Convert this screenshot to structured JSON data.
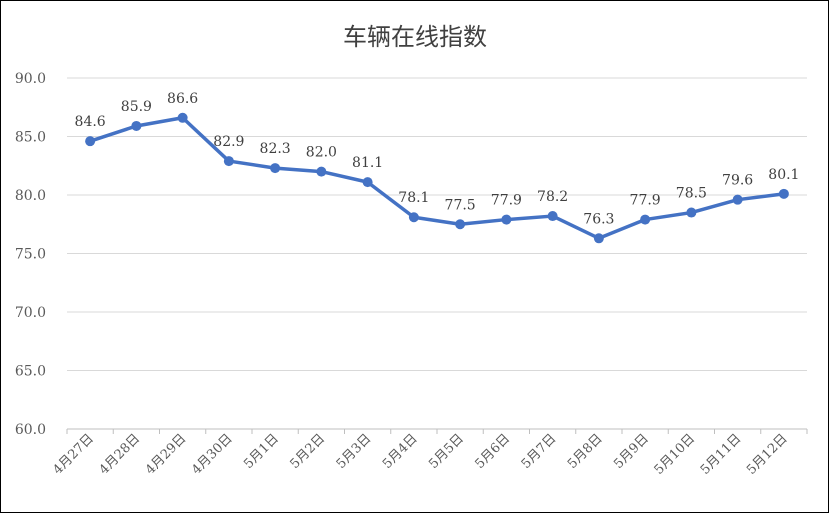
{
  "chart_data": {
    "type": "line",
    "title": "车辆在线指数",
    "xlabel": "",
    "ylabel": "",
    "categories": [
      "4月27日",
      "4月28日",
      "4月29日",
      "4月30日",
      "5月1日",
      "5月2日",
      "5月3日",
      "5月4日",
      "5月5日",
      "5月6日",
      "5月7日",
      "5月8日",
      "5月9日",
      "5月10日",
      "5月11日",
      "5月12日"
    ],
    "series": [
      {
        "values": [
          84.6,
          85.9,
          86.6,
          82.9,
          82.3,
          82.0,
          81.1,
          78.1,
          77.5,
          77.9,
          78.2,
          76.3,
          77.9,
          78.5,
          79.6,
          80.1
        ],
        "labels": [
          "84.6",
          "85.9",
          "86.6",
          "82.9",
          "82.3",
          "82.0",
          "81.1",
          "78.1",
          "77.5",
          "77.9",
          "78.2",
          "76.3",
          "77.9",
          "78.5",
          "79.6",
          "80.1"
        ],
        "color": "#4472C4"
      }
    ],
    "ylim": [
      60,
      90
    ],
    "yticks": [
      "60.0",
      "65.0",
      "70.0",
      "75.0",
      "80.0",
      "85.0",
      "90.0"
    ],
    "grid": true,
    "legend": "none",
    "colors": {
      "line": "#4472C4",
      "grid": "#D9D9D9",
      "axis": "#BFBFBF",
      "text": "#595959"
    }
  }
}
